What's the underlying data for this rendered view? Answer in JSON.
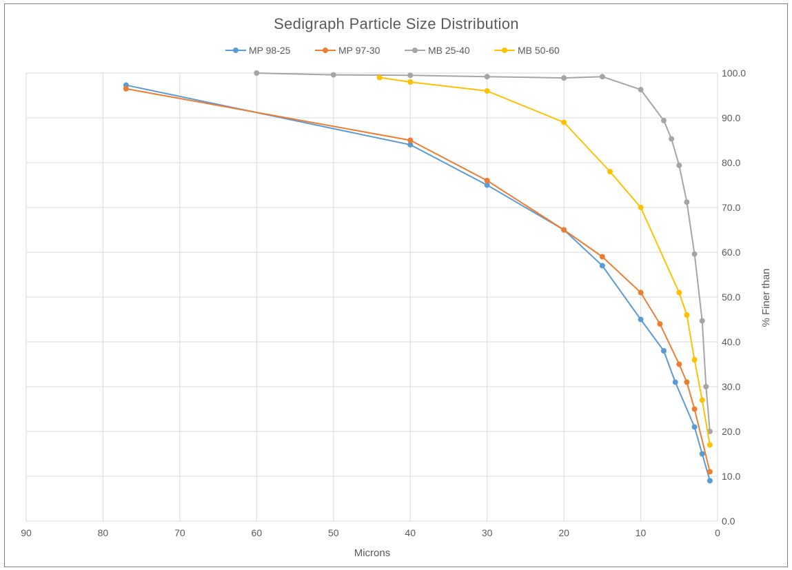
{
  "chart_data": {
    "type": "scatter",
    "title": "Sedigraph Particle Size Distribution",
    "xlabel": "Microns",
    "ylabel": "% Finer than",
    "xlim": [
      0,
      90
    ],
    "x_reversed": true,
    "ylim": [
      0,
      100
    ],
    "y_axis_position": "right",
    "x_ticks": [
      "90",
      "80",
      "70",
      "60",
      "50",
      "40",
      "30",
      "20",
      "10",
      "0"
    ],
    "y_ticks": [
      "0.0",
      "10.0",
      "20.0",
      "30.0",
      "40.0",
      "50.0",
      "60.0",
      "70.0",
      "80.0",
      "90.0",
      "100.0"
    ],
    "grid": true,
    "legend_position": "top",
    "series": [
      {
        "name": "MP 98-25",
        "color": "#5b9bd5",
        "x": [
          77,
          40,
          30,
          20,
          15,
          10,
          7,
          5.5,
          3,
          2,
          1
        ],
        "y": [
          97.3,
          84,
          75,
          65,
          57,
          45,
          38,
          31,
          21,
          15,
          9
        ]
      },
      {
        "name": "MP 97-30",
        "color": "#ed7d31",
        "x": [
          77,
          40,
          30,
          20,
          15,
          10,
          7.5,
          5,
          4,
          3,
          1
        ],
        "y": [
          96.5,
          85,
          76,
          65,
          59,
          51,
          44,
          35,
          31,
          25,
          11
        ]
      },
      {
        "name": "MB 25-40",
        "color": "#a5a5a5",
        "x": [
          60,
          50,
          40,
          30,
          20,
          15,
          10,
          7,
          6,
          5,
          4,
          3,
          2,
          1.5,
          1
        ],
        "y": [
          100,
          99.6,
          99.5,
          99.2,
          98.9,
          99.2,
          96.3,
          89.4,
          85.3,
          79.4,
          71.2,
          59.6,
          44.7,
          30,
          20
        ]
      },
      {
        "name": "MB 50-60",
        "color": "#ffc000",
        "x": [
          44,
          40,
          30,
          20,
          14,
          10,
          5,
          4,
          3,
          2,
          1
        ],
        "y": [
          99,
          98,
          96,
          89,
          78,
          70,
          51,
          46,
          36,
          27,
          17
        ]
      }
    ]
  }
}
